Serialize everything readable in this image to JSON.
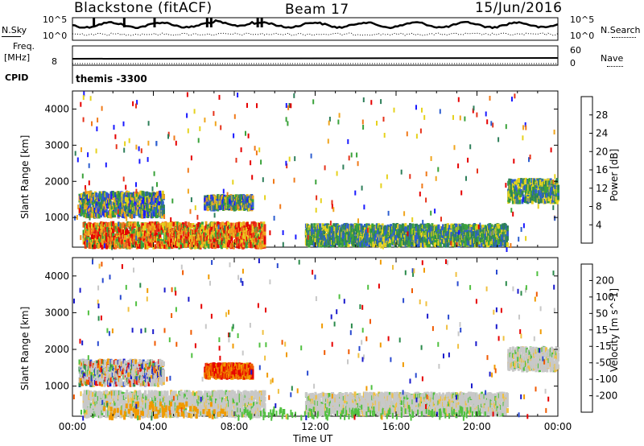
{
  "header": {
    "station": "Blackstone (fitACF)",
    "beam": "Beam 17",
    "date": "15/Jun/2016"
  },
  "noise_panel": {
    "left_label": "N.Sky",
    "left_top": "10^5",
    "left_bottom": "10^0",
    "right_label": "N.Search",
    "right_top": "10^5",
    "right_bottom": "10^0"
  },
  "freq_panel": {
    "left_label_1": "Freq.",
    "left_label_2": "[MHz]",
    "left_value": "8",
    "cpid_label": "CPID",
    "right_label": "Nave",
    "right_top": "60",
    "right_bottom": "0"
  },
  "cpid": {
    "text": "themis  -3300"
  },
  "colors": {
    "power": [
      "#1a1aff",
      "#2e5fd0",
      "#2e7f5a",
      "#3aa23a",
      "#e6d21e",
      "#f0a51e",
      "#f07a1a",
      "#e6321a",
      "#e60000"
    ],
    "velocity": [
      "#e60000",
      "#f05a00",
      "#f09a00",
      "#f0c040",
      "#c8c8c8",
      "#50c040",
      "#2a8a4a",
      "#2a4ad0",
      "#1a1acc"
    ]
  },
  "chart_data": [
    {
      "type": "heatmap",
      "title": "",
      "ylabel": "Slant Range [km]",
      "xlabel": "Time UT",
      "xlim": [
        "00:00",
        "24:00"
      ],
      "ylim": [
        180,
        4500
      ],
      "x_ticks": [
        "00:00",
        "04:00",
        "08:00",
        "12:00",
        "16:00",
        "20:00",
        "00:00"
      ],
      "y_ticks": [
        "1000",
        "2000",
        "3000",
        "4000"
      ],
      "colorbar_label": "Power [dB]",
      "colorbar_ticks": [
        "4",
        "8",
        "12",
        "16",
        "20",
        "24",
        "28"
      ],
      "colorbar_range": [
        0,
        30
      ],
      "regions": [
        {
          "t0": 0.3,
          "t1": 4.5,
          "r0": 1100,
          "r1": 1750,
          "level": "mixed"
        },
        {
          "t0": 6.5,
          "t1": 8.9,
          "r0": 1300,
          "r1": 1650,
          "level": "mixed"
        },
        {
          "t0": 0.5,
          "t1": 9.5,
          "r0": 250,
          "r1": 900,
          "level": "high"
        },
        {
          "t0": 11.5,
          "t1": 21.5,
          "r0": 300,
          "r1": 850,
          "level": "mid"
        },
        {
          "t0": 21.5,
          "t1": 24.0,
          "r0": 1500,
          "r1": 2100,
          "level": "mid"
        }
      ]
    },
    {
      "type": "heatmap",
      "title": "",
      "ylabel": "Slant Range [km]",
      "xlabel": "Time UT",
      "xlim": [
        "00:00",
        "24:00"
      ],
      "ylim": [
        180,
        4500
      ],
      "x_ticks": [
        "00:00",
        "04:00",
        "08:00",
        "12:00",
        "16:00",
        "20:00",
        "00:00"
      ],
      "y_ticks": [
        "1000",
        "2000",
        "3000",
        "4000"
      ],
      "colorbar_label": "Velocity [m s^-1]",
      "colorbar_ticks": [
        "-200",
        "-100",
        "-50",
        "-15",
        "15",
        "50",
        "100",
        "200"
      ],
      "colorbar_range": [
        -250,
        250
      ],
      "regions": [
        {
          "t0": 0.3,
          "t1": 4.5,
          "r0": 1100,
          "r1": 1750,
          "level": "mixed"
        },
        {
          "t0": 6.5,
          "t1": 8.9,
          "r0": 1300,
          "r1": 1650,
          "level": "negative"
        },
        {
          "t0": 0.5,
          "t1": 9.5,
          "r0": 250,
          "r1": 900,
          "level": "ground"
        },
        {
          "t0": 11.5,
          "t1": 21.5,
          "r0": 300,
          "r1": 850,
          "level": "ground"
        },
        {
          "t0": 21.5,
          "t1": 24.0,
          "r0": 1500,
          "r1": 2100,
          "level": "ground"
        }
      ]
    }
  ]
}
